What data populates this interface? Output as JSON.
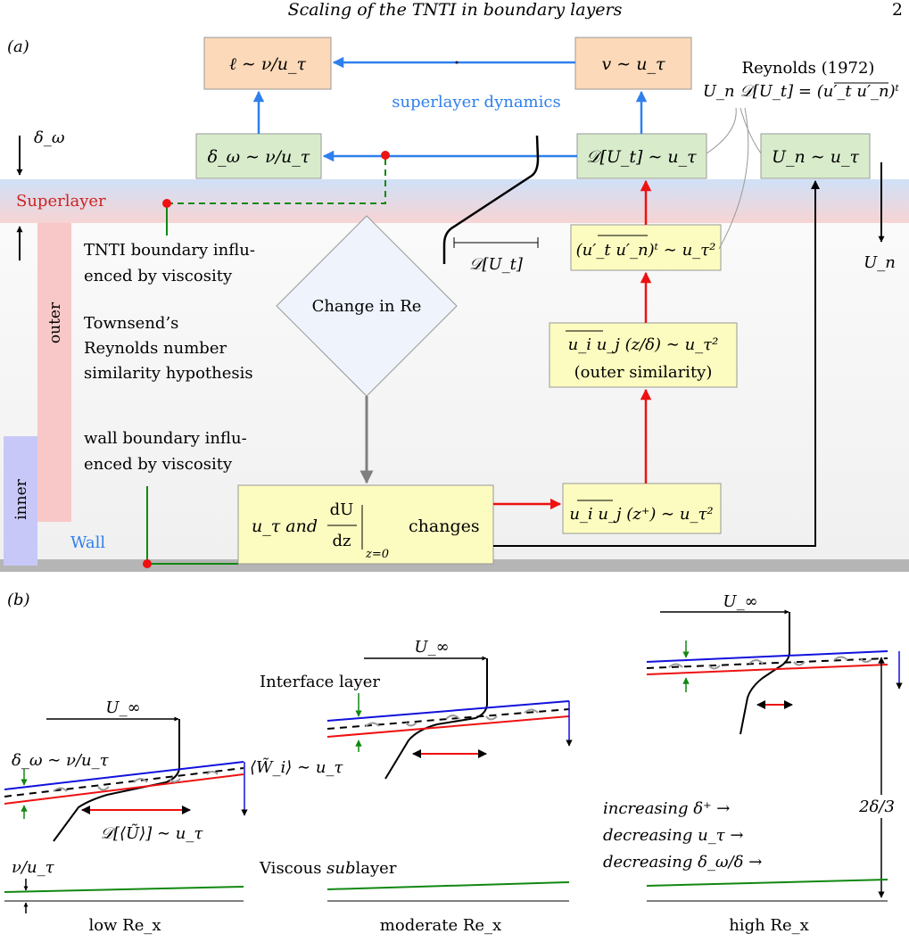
{
  "header": {
    "title": "Scaling of the TNTI in boundary layers",
    "page_number": "2"
  },
  "panel_a": {
    "label": "(a)",
    "boxes": {
      "ell": "ℓ ∼ ν/u_τ",
      "v": "v ∼ u_τ",
      "delta_omega": "δ_ω ∼ ν/u_τ",
      "D_Ut": "𝒟[U_t] ∼ u_τ",
      "Un": "U_n ∼ u_τ",
      "flux": "(u′_t u′_n)ᵗ ∼ u_τ²",
      "outer_sim": "u_i u_j (z/δ) ∼ u_τ²",
      "outer_sim_note": "(outer similarity)",
      "inner_sim": "u_i u_j (z⁺) ∼ u_τ²",
      "wall_part1": "u_τ and",
      "wall_frac_num": "dU",
      "wall_frac_den": "dz",
      "wall_sub": "z=0",
      "wall_part2": "changes",
      "diamond": "Change in Re"
    },
    "labels": {
      "superlayer_dynamics": "superlayer dynamics",
      "reynolds_ref": "Reynolds (1972)",
      "reynolds_eq": "U_n 𝒟[U_t] = (u′_t u′_n)ᵗ",
      "delta_omega_side": "δ_ω",
      "superlayer": "Superlayer",
      "tnti_line1": "TNTI boundary influ-",
      "tnti_line2": "enced by viscosity",
      "townsend1": "Townsend’s",
      "townsend2": "Reynolds number",
      "townsend3": "similarity hypothesis",
      "wall_bnd1": "wall boundary influ-",
      "wall_bnd2": "enced by viscosity",
      "outer": "outer",
      "inner": "inner",
      "wall": "Wall",
      "D_Ut_width": "𝒟[U_t]",
      "Un_side": "U_n"
    },
    "colors": {
      "orange_box": "#fcd9b8",
      "green_box": "#d8eccc",
      "yellow_box": "#fcfcc0",
      "blue_arrow": "#2f80ed",
      "red_arrow": "#ee1111",
      "superlayer_blue": "#cfe0f7",
      "superlayer_red": "#f7d4d4",
      "outer_bar": "#f8c8c8",
      "inner_bar": "#c8c8f8",
      "diamond_fill": "#eef3fc",
      "wall_gray": "#b5b5b5",
      "green_line": "#118811"
    }
  },
  "panel_b": {
    "label": "(b)",
    "u_inf": "U_∞",
    "low": {
      "delta_omega": "δ_ω ∼ ν/u_τ",
      "w_tilde": "⟨W̃_i⟩ ∼ u_τ",
      "d_tilde": "𝒟[⟨Ũ⟩] ∼ u_τ",
      "nu_u": "ν/u_τ",
      "caption": "low Re_x"
    },
    "moderate": {
      "interface_layer": "Interface layer",
      "viscous_sublayer_pre": "Viscous ",
      "viscous_sublayer_it": "sub",
      "viscous_sublayer_post": "layer",
      "caption": "moderate Re_x"
    },
    "high": {
      "inc": "increasing δ⁺ →",
      "dec_u": "decreasing u_τ →",
      "dec_d": "decreasing δ_ω/δ →",
      "two_delta": "2δ/3",
      "caption": "high Re_x"
    }
  }
}
